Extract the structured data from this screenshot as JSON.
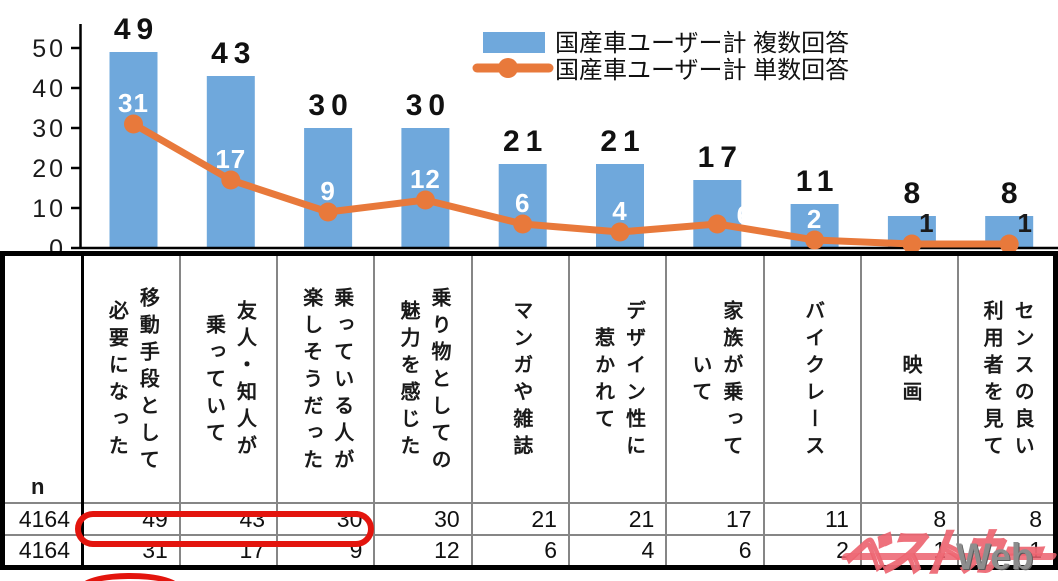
{
  "chart_data": {
    "type": "bar+line",
    "categories": [
      "移動手段として必要になった",
      "友人・知人が乗っていて",
      "乗っている人が楽しそうだった",
      "乗り物としての魅力を感じた",
      "マンガや雑誌",
      "デザイン性に惹かれて",
      "家族が乗っていて",
      "バイクレース",
      "映画",
      "センスの良い利用者を見て"
    ],
    "series": [
      {
        "name": "国産車ユーザー計 複数回答",
        "type": "bar",
        "values": [
          49,
          43,
          30,
          30,
          21,
          21,
          17,
          11,
          8,
          8
        ]
      },
      {
        "name": "国産車ユーザー計 単数回答",
        "type": "line",
        "values": [
          31,
          17,
          9,
          12,
          6,
          4,
          6,
          2,
          1,
          1
        ]
      }
    ],
    "ylim": [
      0,
      50
    ],
    "yticks": [
      0,
      10,
      20,
      30,
      40,
      50
    ],
    "grid": false,
    "legend_position": "top-right"
  },
  "colors": {
    "bar": "#6FA8DC",
    "line": "#E8793B",
    "bar_value_label": "#111111",
    "line_value_label_light": "#FFFFFF",
    "line_value_label_dark": "#1A1A1A",
    "annotation_red": "#E3150E"
  },
  "table": {
    "n_label": "n",
    "headers": [
      "移動手段として\n必要になった",
      "友人・知人が\n乗っていて",
      "乗っている人が\n楽しそうだった",
      "乗り物としての\n魅力を感じた",
      "マンガや雑誌",
      "デザイン性に\n惹かれて",
      "家族が乗って\nいて",
      "バイクレース",
      "映画",
      "センスの良い\n利用者を見て"
    ],
    "rows": [
      {
        "n": "4164",
        "values": [
          "49",
          "43",
          "30",
          "30",
          "21",
          "21",
          "17",
          "11",
          "8",
          "8"
        ]
      },
      {
        "n": "4164",
        "values": [
          "31",
          "17",
          "9",
          "12",
          "6",
          "4",
          "6",
          "2",
          "1",
          "1"
        ]
      }
    ]
  },
  "watermark": {
    "logo_text": "ベストカー",
    "suffix": "Web"
  }
}
